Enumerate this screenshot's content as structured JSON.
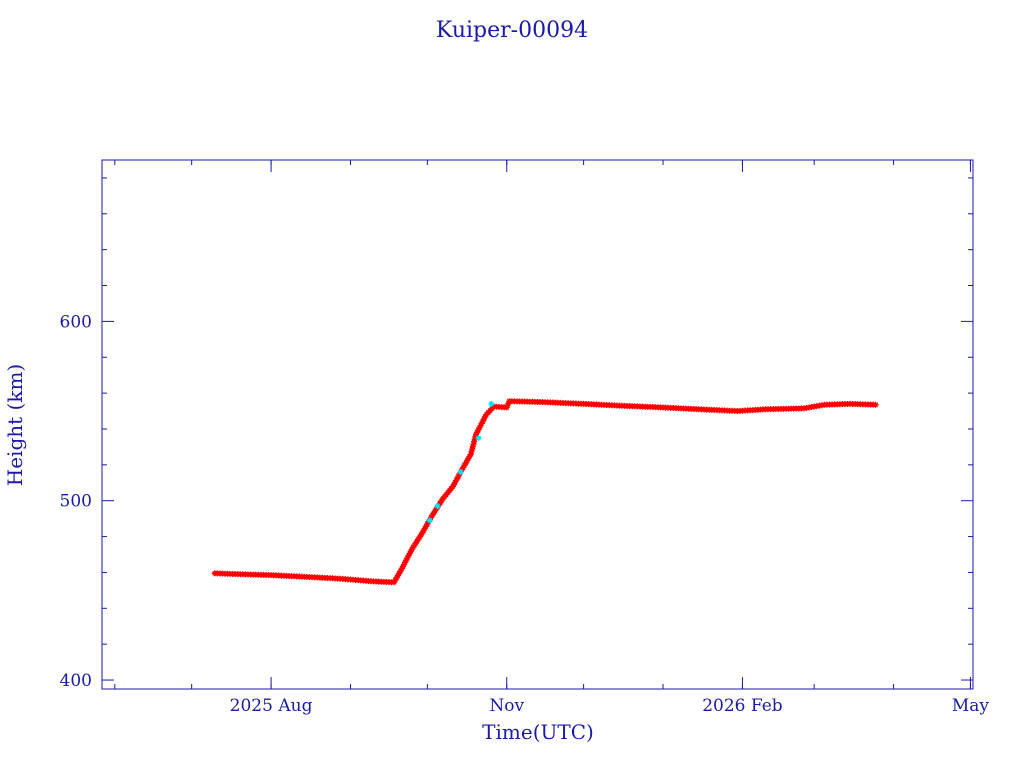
{
  "chart_data": {
    "type": "scatter",
    "title": "Kuiper-00094",
    "xlabel": "Time(UTC)",
    "ylabel": "Height (km)",
    "xlim": [
      "2025-05-27",
      "2026-05-02"
    ],
    "ylim": [
      395,
      690
    ],
    "x_ticks": [
      {
        "date": "2025-08-01",
        "label": "2025 Aug"
      },
      {
        "date": "2025-11-01",
        "label": "Nov"
      },
      {
        "date": "2026-02-01",
        "label": "2026 Feb"
      },
      {
        "date": "2026-05-01",
        "label": "May"
      }
    ],
    "y_ticks": [
      400,
      500,
      600
    ],
    "series": [
      {
        "color": "#ff0000",
        "points": [
          [
            "2025-07-10",
            459.5
          ],
          [
            "2025-07-20",
            459
          ],
          [
            "2025-08-01",
            458.5
          ],
          [
            "2025-08-15",
            457.5
          ],
          [
            "2025-08-28",
            456.5
          ],
          [
            "2025-09-10",
            455
          ],
          [
            "2025-09-18",
            454.5
          ],
          [
            "2025-09-21",
            462
          ],
          [
            "2025-09-25",
            473
          ],
          [
            "2025-09-29",
            482
          ],
          [
            "2025-10-03",
            492
          ],
          [
            "2025-10-07",
            501
          ],
          [
            "2025-10-11",
            508
          ],
          [
            "2025-10-14",
            516
          ],
          [
            "2025-10-18",
            526
          ],
          [
            "2025-10-20",
            537
          ],
          [
            "2025-10-24",
            548
          ],
          [
            "2025-10-27",
            552.5
          ],
          [
            "2025-11-01",
            552
          ],
          [
            "2025-11-02",
            555.5
          ],
          [
            "2025-11-15",
            555
          ],
          [
            "2025-12-01",
            554
          ],
          [
            "2025-12-15",
            553
          ],
          [
            "2026-01-01",
            552
          ],
          [
            "2026-01-15",
            551
          ],
          [
            "2026-01-30",
            550
          ],
          [
            "2026-02-10",
            551
          ],
          [
            "2026-02-25",
            551.5
          ],
          [
            "2026-03-05",
            553.5
          ],
          [
            "2026-03-15",
            554
          ],
          [
            "2026-03-25",
            553.5
          ]
        ]
      },
      {
        "color": "#00e5ff",
        "points": [
          [
            "2025-10-02",
            489
          ],
          [
            "2025-10-05",
            497
          ],
          [
            "2025-10-14",
            516
          ],
          [
            "2025-10-21",
            535
          ],
          [
            "2025-10-26",
            554
          ]
        ]
      }
    ],
    "grid": false,
    "legend": "none"
  }
}
